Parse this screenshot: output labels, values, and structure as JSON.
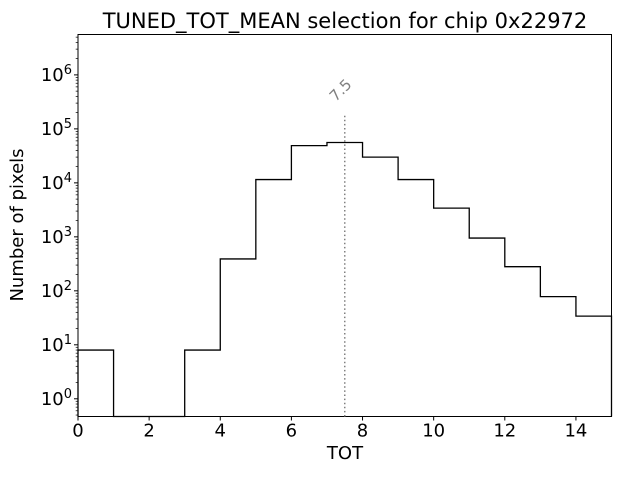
{
  "chart_data": {
    "type": "histogram-step",
    "title": "TUNED_TOT_MEAN selection for chip 0x22972",
    "xlabel": "TOT",
    "ylabel": "Number of pixels",
    "yscale": "log",
    "grid": false,
    "legend": false,
    "xlim": [
      0,
      15
    ],
    "ylim": [
      0.47,
      5600000
    ],
    "x_ticks": [
      0,
      2,
      4,
      6,
      8,
      10,
      12,
      14
    ],
    "y_tick_exponents": [
      0,
      1,
      2,
      3,
      4,
      5,
      6
    ],
    "bin_edges": [
      0,
      1,
      2,
      3,
      4,
      5,
      6,
      7,
      8,
      9,
      10,
      11,
      12,
      13,
      14,
      15
    ],
    "counts": [
      8,
      0,
      0,
      8,
      390,
      11500,
      49000,
      56000,
      30000,
      11500,
      3400,
      950,
      280,
      78,
      34
    ],
    "line_color": "#000000",
    "vline": {
      "x": 7.5,
      "label": "7.5",
      "color": "#808080",
      "style": "dotted"
    }
  }
}
